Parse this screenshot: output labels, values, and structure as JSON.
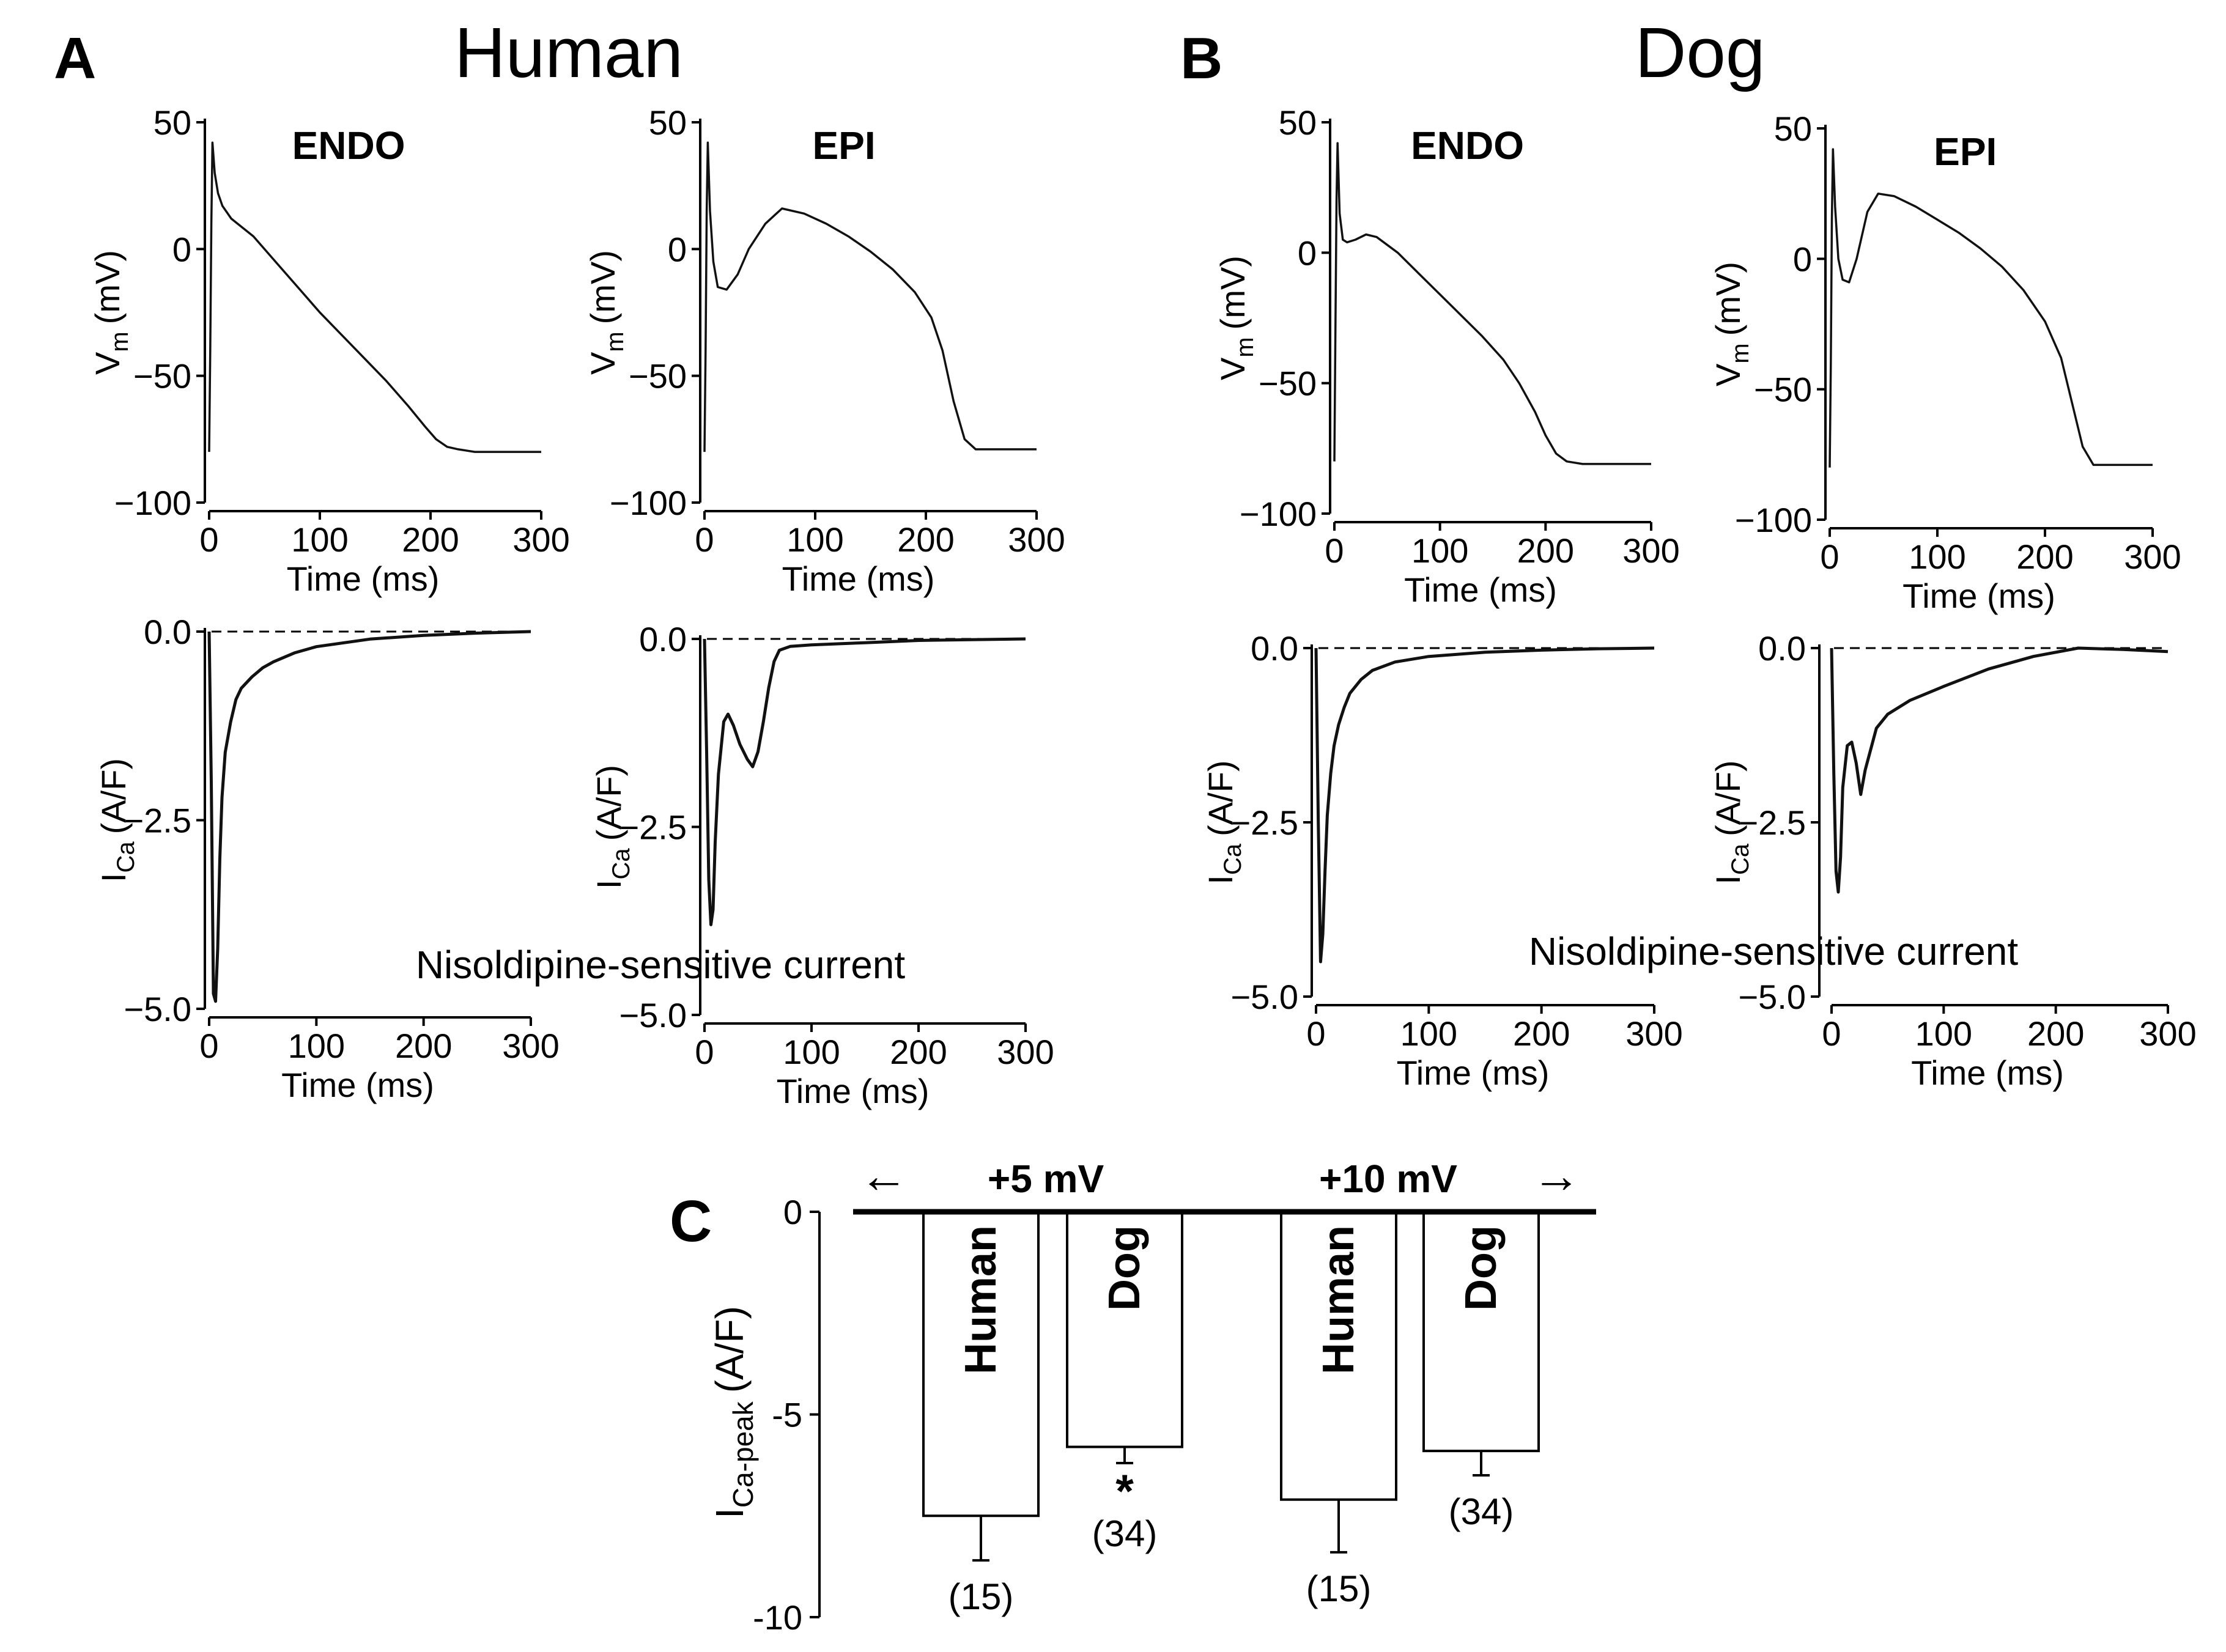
{
  "panels": {
    "A": {
      "letter": "A",
      "species": "Human"
    },
    "B": {
      "letter": "B",
      "species": "Dog"
    },
    "C": {
      "letter": "C"
    }
  },
  "labels": {
    "vm": "V",
    "vm_sub": "m",
    "vm_unit": "(mV)",
    "ica": "I",
    "ica_sub": "Ca",
    "ica_unit": "(A/F)",
    "time": "Time (ms)",
    "nisoldipine": "Nisoldipine-sensitive current"
  },
  "chart_data": [
    {
      "id": "human-endo-ap",
      "type": "line",
      "panel": "A",
      "tag": "ENDO",
      "xlabel": "Time (ms)",
      "ylabel": "Vm (mV)",
      "xlim": [
        0,
        300
      ],
      "ylim": [
        -100,
        50
      ],
      "xticks": [
        {
          "v": 0,
          "t": "0"
        },
        {
          "v": 100,
          "t": "100"
        },
        {
          "v": 200,
          "t": "200"
        },
        {
          "v": 300,
          "t": "300"
        }
      ],
      "yticks": [
        {
          "v": 50,
          "t": "50"
        },
        {
          "v": 0,
          "t": "0"
        },
        {
          "v": -50,
          "t": "−50"
        },
        {
          "v": -100,
          "t": "−100"
        }
      ],
      "x": [
        0,
        1,
        2,
        3,
        5,
        8,
        12,
        20,
        40,
        60,
        80,
        100,
        120,
        140,
        160,
        180,
        195,
        205,
        215,
        225,
        240,
        300
      ],
      "y": [
        -80,
        -40,
        10,
        42,
        30,
        22,
        17,
        12,
        5,
        -5,
        -15,
        -25,
        -34,
        -43,
        -52,
        -62,
        -70,
        -75,
        -78,
        -79,
        -80,
        -80
      ]
    },
    {
      "id": "human-epi-ap",
      "type": "line",
      "panel": "A",
      "tag": "EPI",
      "xlabel": "Time (ms)",
      "ylabel": "Vm (mV)",
      "xlim": [
        0,
        300
      ],
      "ylim": [
        -100,
        50
      ],
      "xticks": [
        {
          "v": 0,
          "t": "0"
        },
        {
          "v": 100,
          "t": "100"
        },
        {
          "v": 200,
          "t": "200"
        },
        {
          "v": 300,
          "t": "300"
        }
      ],
      "yticks": [
        {
          "v": 50,
          "t": "50"
        },
        {
          "v": 0,
          "t": "0"
        },
        {
          "v": -50,
          "t": "−50"
        },
        {
          "v": -100,
          "t": "−100"
        }
      ],
      "x": [
        0,
        1,
        2,
        3,
        5,
        8,
        12,
        20,
        30,
        40,
        55,
        70,
        90,
        110,
        130,
        150,
        170,
        190,
        205,
        215,
        225,
        235,
        245,
        300
      ],
      "y": [
        -80,
        -40,
        15,
        42,
        15,
        -5,
        -15,
        -16,
        -10,
        0,
        10,
        16,
        14,
        10,
        5,
        -1,
        -8,
        -17,
        -27,
        -40,
        -60,
        -75,
        -79,
        -79
      ]
    },
    {
      "id": "human-endo-ica",
      "type": "line",
      "panel": "A",
      "tag": "",
      "xlabel": "Time (ms)",
      "ylabel": "ICa (A/F)",
      "xlim": [
        0,
        300
      ],
      "ylim": [
        -5,
        0
      ],
      "xticks": [
        {
          "v": 0,
          "t": "0"
        },
        {
          "v": 100,
          "t": "100"
        },
        {
          "v": 200,
          "t": "200"
        },
        {
          "v": 300,
          "t": "300"
        }
      ],
      "yticks": [
        {
          "v": 0,
          "t": "0.0"
        },
        {
          "v": -2.5,
          "t": "−2.5"
        },
        {
          "v": -5,
          "t": "−5.0"
        }
      ],
      "baseline": 0,
      "x": [
        0,
        2,
        4,
        6,
        8,
        10,
        12,
        15,
        20,
        25,
        30,
        40,
        50,
        60,
        80,
        100,
        150,
        200,
        250,
        300
      ],
      "y": [
        0,
        -2,
        -4.8,
        -4.9,
        -4.2,
        -3.0,
        -2.2,
        -1.6,
        -1.2,
        -0.9,
        -0.75,
        -0.6,
        -0.48,
        -0.4,
        -0.28,
        -0.2,
        -0.1,
        -0.05,
        -0.02,
        0
      ]
    },
    {
      "id": "human-epi-ica",
      "type": "line",
      "panel": "A",
      "tag": "",
      "xlabel": "Time (ms)",
      "ylabel": "ICa (A/F)",
      "xlim": [
        0,
        300
      ],
      "ylim": [
        -5,
        0
      ],
      "xticks": [
        {
          "v": 0,
          "t": "0"
        },
        {
          "v": 100,
          "t": "100"
        },
        {
          "v": 200,
          "t": "200"
        },
        {
          "v": 300,
          "t": "300"
        }
      ],
      "yticks": [
        {
          "v": 0,
          "t": "0.0"
        },
        {
          "v": -2.5,
          "t": "−2.5"
        },
        {
          "v": -5,
          "t": "−5.0"
        }
      ],
      "baseline": 0,
      "x": [
        0,
        2,
        4,
        6,
        8,
        10,
        13,
        18,
        22,
        27,
        33,
        40,
        45,
        50,
        55,
        60,
        65,
        70,
        80,
        100,
        150,
        200,
        300
      ],
      "y": [
        0,
        -1.5,
        -3.2,
        -3.8,
        -3.6,
        -2.7,
        -1.8,
        -1.1,
        -1.0,
        -1.15,
        -1.4,
        -1.6,
        -1.7,
        -1.5,
        -1.1,
        -0.65,
        -0.3,
        -0.15,
        -0.1,
        -0.08,
        -0.05,
        -0.02,
        0
      ]
    },
    {
      "id": "dog-endo-ap",
      "type": "line",
      "panel": "B",
      "tag": "ENDO",
      "xlabel": "Time (ms)",
      "ylabel": "Vm (mV)",
      "xlim": [
        0,
        300
      ],
      "ylim": [
        -100,
        50
      ],
      "xticks": [
        {
          "v": 0,
          "t": "0"
        },
        {
          "v": 100,
          "t": "100"
        },
        {
          "v": 200,
          "t": "200"
        },
        {
          "v": 300,
          "t": "300"
        }
      ],
      "yticks": [
        {
          "v": 50,
          "t": "50"
        },
        {
          "v": 0,
          "t": "0"
        },
        {
          "v": -50,
          "t": "−50"
        },
        {
          "v": -100,
          "t": "−100"
        }
      ],
      "x": [
        0,
        1,
        2,
        3,
        5,
        8,
        12,
        20,
        30,
        40,
        60,
        80,
        100,
        120,
        140,
        160,
        175,
        190,
        200,
        210,
        220,
        235,
        300
      ],
      "y": [
        -80,
        -30,
        20,
        42,
        15,
        5,
        4,
        5,
        7,
        6,
        0,
        -8,
        -16,
        -24,
        -32,
        -41,
        -50,
        -61,
        -70,
        -77,
        -80,
        -81,
        -81
      ]
    },
    {
      "id": "dog-epi-ap",
      "type": "line",
      "panel": "B",
      "tag": "EPI",
      "xlabel": "Time (ms)",
      "ylabel": "Vm (mV)",
      "xlim": [
        0,
        300
      ],
      "ylim": [
        -100,
        50
      ],
      "xticks": [
        {
          "v": 0,
          "t": "0"
        },
        {
          "v": 100,
          "t": "100"
        },
        {
          "v": 200,
          "t": "200"
        },
        {
          "v": 300,
          "t": "300"
        }
      ],
      "yticks": [
        {
          "v": 50,
          "t": "50"
        },
        {
          "v": 0,
          "t": "0"
        },
        {
          "v": -50,
          "t": "−50"
        },
        {
          "v": -100,
          "t": "−100"
        }
      ],
      "x": [
        0,
        1,
        2,
        3,
        5,
        8,
        12,
        18,
        25,
        35,
        45,
        60,
        80,
        100,
        120,
        140,
        160,
        180,
        200,
        215,
        225,
        235,
        245,
        300
      ],
      "y": [
        -80,
        -40,
        15,
        42,
        20,
        0,
        -8,
        -9,
        0,
        18,
        25,
        24,
        20,
        15,
        10,
        4,
        -3,
        -12,
        -24,
        -38,
        -55,
        -72,
        -79,
        -79
      ]
    },
    {
      "id": "dog-endo-ica",
      "type": "line",
      "panel": "B",
      "tag": "",
      "xlabel": "Time (ms)",
      "ylabel": "ICa (A/F)",
      "xlim": [
        0,
        300
      ],
      "ylim": [
        -5,
        0
      ],
      "xticks": [
        {
          "v": 0,
          "t": "0"
        },
        {
          "v": 100,
          "t": "100"
        },
        {
          "v": 200,
          "t": "200"
        },
        {
          "v": 300,
          "t": "300"
        }
      ],
      "yticks": [
        {
          "v": 0,
          "t": "0.0"
        },
        {
          "v": -2.5,
          "t": "−2.5"
        },
        {
          "v": -5,
          "t": "−5.0"
        }
      ],
      "baseline": 0,
      "x": [
        0,
        2,
        4,
        6,
        8,
        10,
        13,
        16,
        20,
        25,
        30,
        40,
        50,
        70,
        100,
        150,
        200,
        250,
        300
      ],
      "y": [
        0,
        -2.5,
        -4.5,
        -4.1,
        -3.2,
        -2.4,
        -1.8,
        -1.4,
        -1.1,
        -0.85,
        -0.65,
        -0.45,
        -0.32,
        -0.2,
        -0.12,
        -0.06,
        -0.03,
        -0.01,
        0
      ]
    },
    {
      "id": "dog-epi-ica",
      "type": "line",
      "panel": "B",
      "tag": "",
      "xlabel": "Time (ms)",
      "ylabel": "ICa (A/F)",
      "xlim": [
        0,
        300
      ],
      "ylim": [
        -5,
        0
      ],
      "xticks": [
        {
          "v": 0,
          "t": "0"
        },
        {
          "v": 100,
          "t": "100"
        },
        {
          "v": 200,
          "t": "200"
        },
        {
          "v": 300,
          "t": "300"
        }
      ],
      "yticks": [
        {
          "v": 0,
          "t": "0.0"
        },
        {
          "v": -2.5,
          "t": "−2.5"
        },
        {
          "v": -5,
          "t": "−5.0"
        }
      ],
      "baseline": 0,
      "x": [
        0,
        2,
        4,
        6,
        8,
        10,
        14,
        18,
        22,
        26,
        30,
        40,
        50,
        70,
        100,
        140,
        180,
        220,
        260,
        300
      ],
      "y": [
        0,
        -1.8,
        -3.2,
        -3.5,
        -3.0,
        -2.0,
        -1.4,
        -1.35,
        -1.65,
        -2.1,
        -1.75,
        -1.15,
        -0.95,
        -0.75,
        -0.55,
        -0.3,
        -0.12,
        0,
        -0.02,
        -0.05
      ]
    },
    {
      "id": "peak-ica-bars",
      "type": "bar",
      "panel": "C",
      "ylabel": "ICa-peak (A/F)",
      "ylabel_main": "I",
      "ylabel_sub": "Ca-peak",
      "ylabel_unit": "(A/F)",
      "ylim": [
        -10,
        0
      ],
      "yticks": [
        {
          "v": 0,
          "t": "0"
        },
        {
          "v": -5,
          "t": "-5"
        },
        {
          "v": -10,
          "t": "-10"
        }
      ],
      "groups": [
        {
          "label": "+5 mV",
          "arrow": "←"
        },
        {
          "label": "+10 mV",
          "arrow": "→"
        }
      ],
      "bars": [
        {
          "label": "Human",
          "group": "+5 mV",
          "value": -7.5,
          "err": 1.1,
          "n": "(15)",
          "sig": ""
        },
        {
          "label": "Dog",
          "group": "+5 mV",
          "value": -5.8,
          "err": 0.4,
          "n": "(34)",
          "sig": "*"
        },
        {
          "label": "Human",
          "group": "+10 mV",
          "value": -7.1,
          "err": 1.3,
          "n": "(15)",
          "sig": ""
        },
        {
          "label": "Dog",
          "group": "+10 mV",
          "value": -5.9,
          "err": 0.6,
          "n": "(34)",
          "sig": ""
        }
      ]
    }
  ]
}
